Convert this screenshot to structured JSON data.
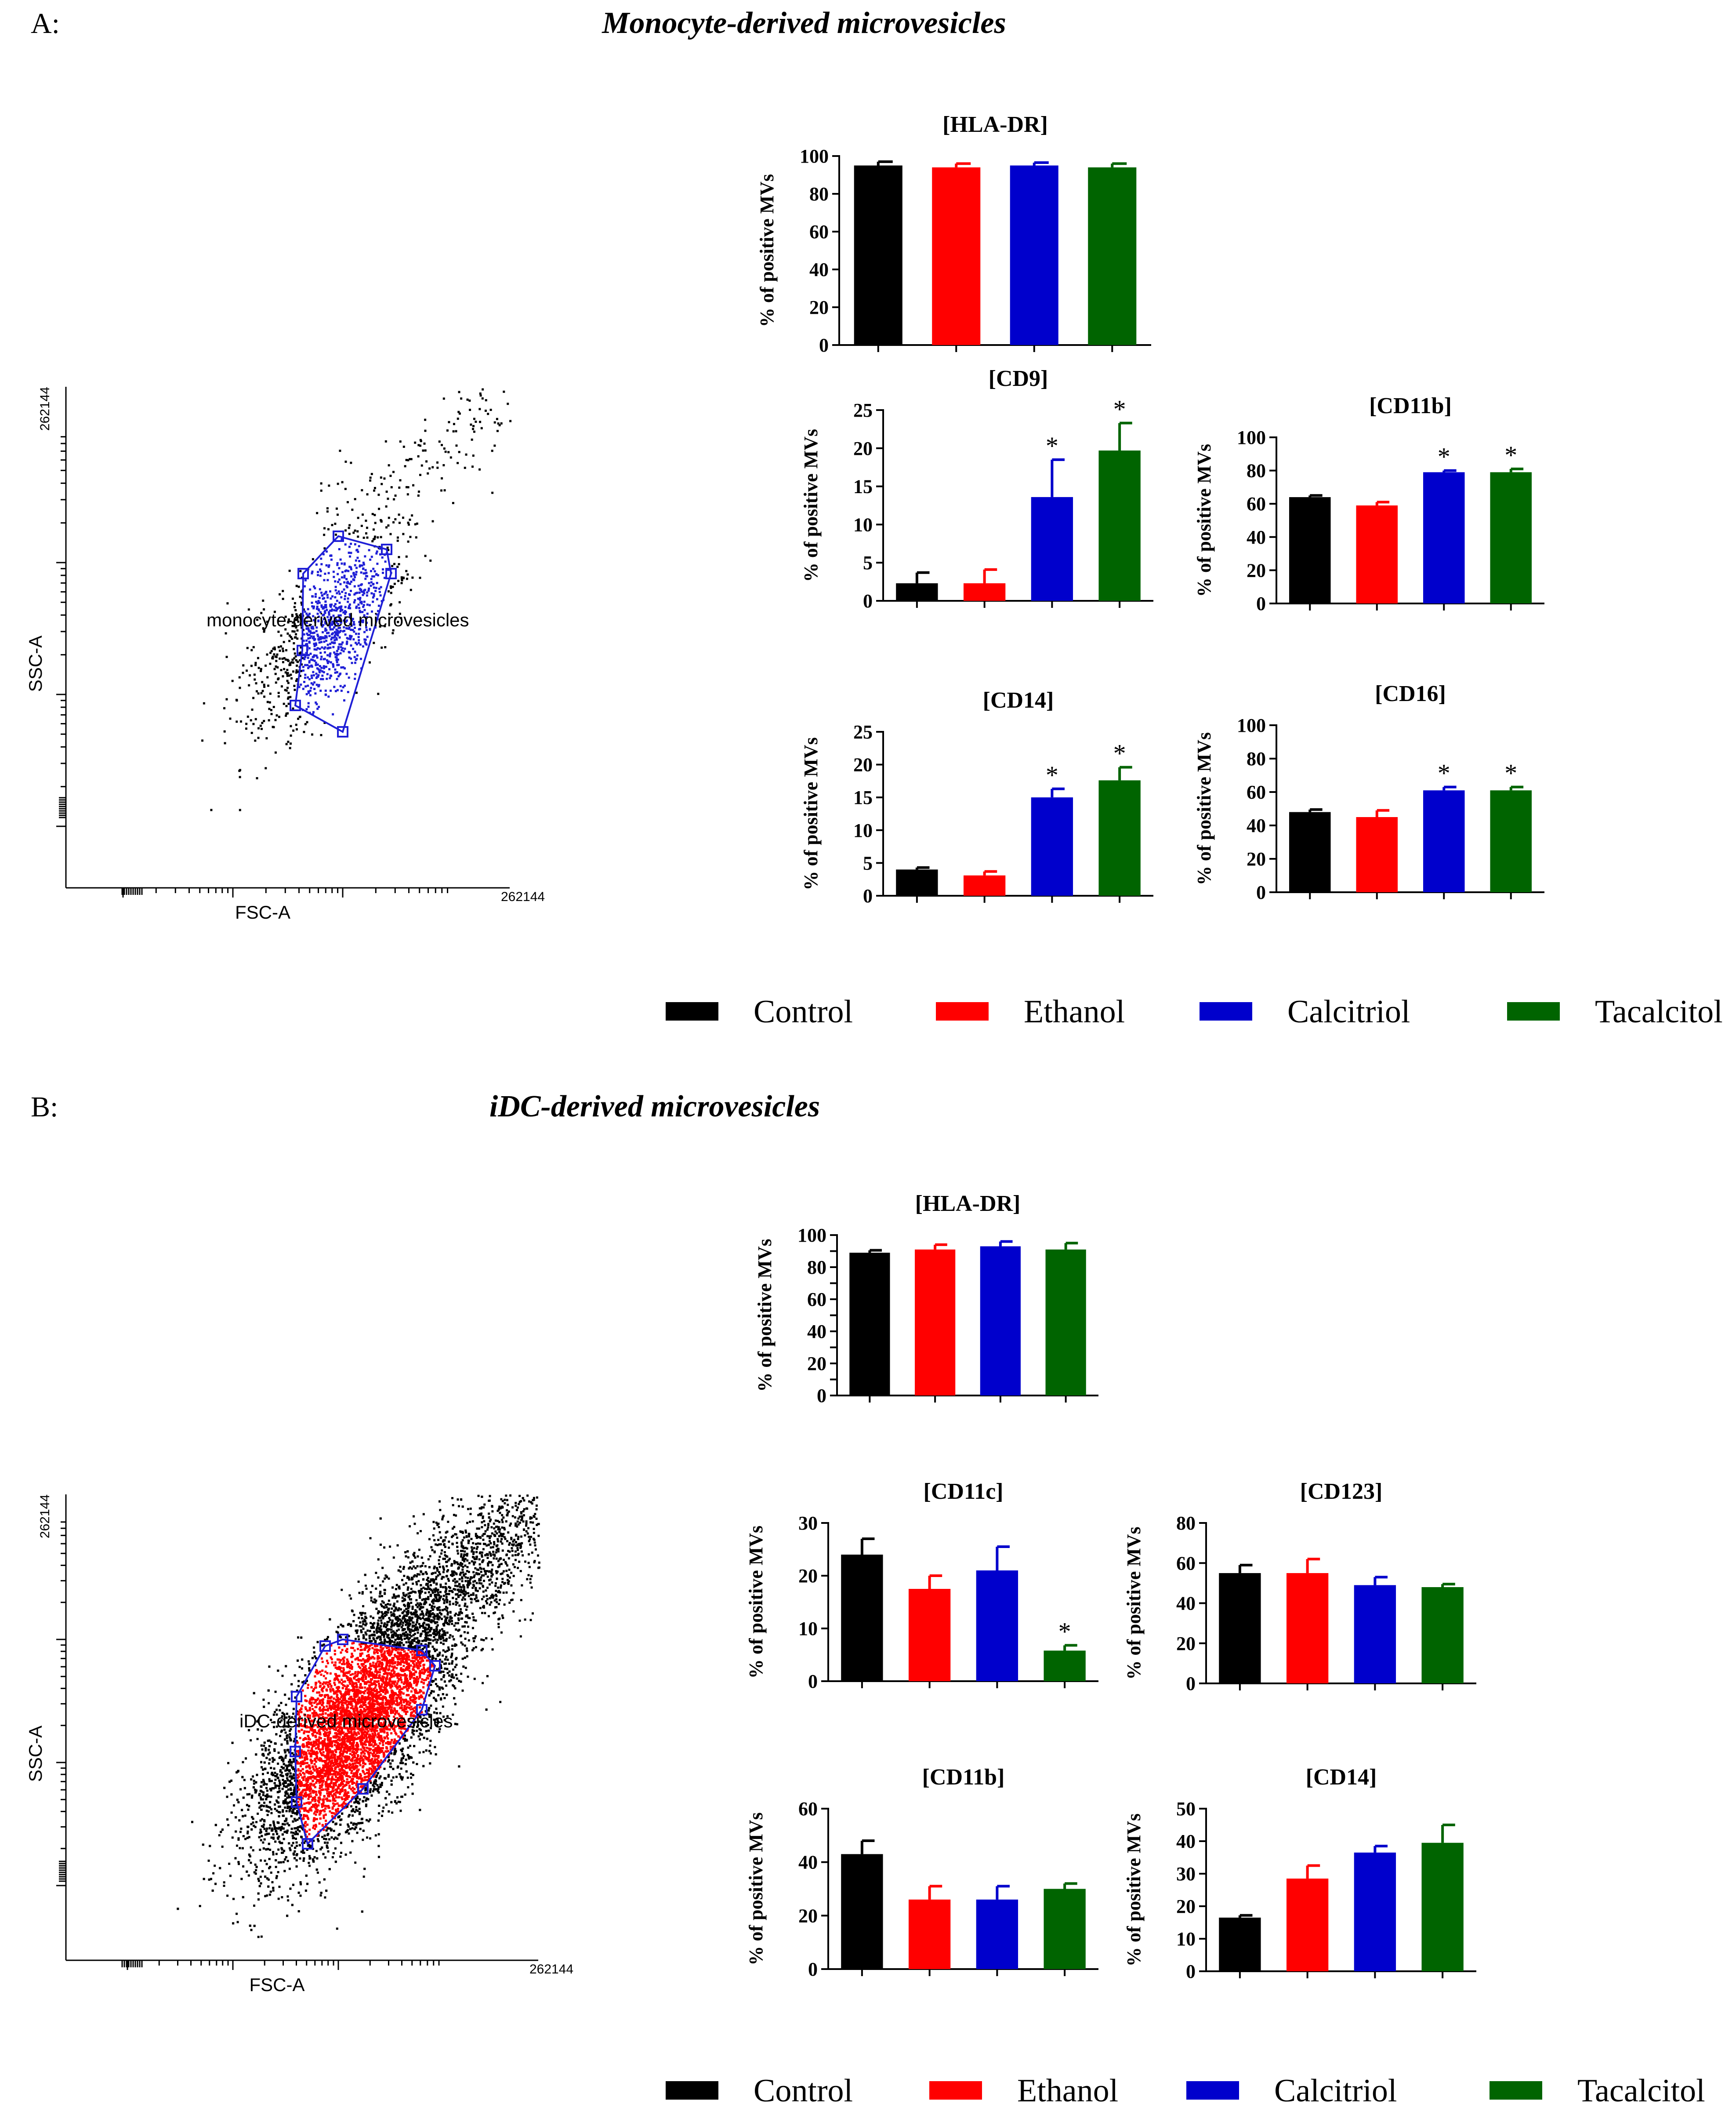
{
  "panels": [
    {
      "letter": "A:",
      "title": "Monocyte-derived microvesicles",
      "scatter": {
        "xlabel": "FSC-A",
        "ylabel": "SSC-A",
        "x_max_tick": "262144",
        "y_max_tick": "262144",
        "gate_label": "monocyte-derived microvesicles",
        "gate_color": "#1f1fd6",
        "gated_dot_color": "#1f1fd6",
        "other_dot_color": "#000000"
      },
      "legend": [
        {
          "label": "Control",
          "color": "#000000"
        },
        {
          "label": "Ethanol",
          "color": "#ff0000"
        },
        {
          "label": "Calcitriol",
          "color": "#0000cc"
        },
        {
          "label": "Tacalcitol",
          "color": "#006400"
        }
      ]
    },
    {
      "letter": "B:",
      "title": "iDC-derived microvesicles",
      "scatter": {
        "xlabel": "FSC-A",
        "ylabel": "SSC-A",
        "x_max_tick": "262144",
        "y_max_tick": "262144",
        "gate_label": "iDC-derived microvesicles",
        "gate_color": "#1f1fd6",
        "gated_dot_color": "#ff0000",
        "other_dot_color": "#000000"
      },
      "legend": [
        {
          "label": "Control",
          "color": "#000000"
        },
        {
          "label": "Ethanol",
          "color": "#ff0000"
        },
        {
          "label": "Calcitriol",
          "color": "#0000cc"
        },
        {
          "label": "Tacalcitol",
          "color": "#006400"
        }
      ]
    }
  ],
  "chart_data": [
    {
      "id": "A-HLA-DR",
      "type": "bar",
      "title": "[HLA-DR]",
      "ylabel": "% of positive MVs",
      "categories": [
        "Control",
        "Ethanol",
        "Calcitriol",
        "Tacalcitol"
      ],
      "colors": [
        "#000000",
        "#ff0000",
        "#0000cc",
        "#006400"
      ],
      "values": [
        95,
        94,
        95,
        94
      ],
      "errors": [
        2,
        2,
        1.5,
        2
      ],
      "ylim": [
        0,
        100
      ],
      "yticks": [
        0,
        20,
        40,
        60,
        80,
        100
      ],
      "significant": [
        false,
        false,
        false,
        false
      ]
    },
    {
      "id": "A-CD9",
      "type": "bar",
      "title": "[CD9]",
      "ylabel": "% of positive MVs",
      "categories": [
        "Control",
        "Ethanol",
        "Calcitriol",
        "Tacalcitol"
      ],
      "colors": [
        "#000000",
        "#ff0000",
        "#0000cc",
        "#006400"
      ],
      "values": [
        2.3,
        2.3,
        13.6,
        19.7
      ],
      "errors": [
        1.4,
        1.8,
        4.9,
        3.6
      ],
      "ylim": [
        0,
        25
      ],
      "yticks": [
        0,
        5,
        10,
        15,
        20,
        25
      ],
      "significant": [
        false,
        false,
        true,
        true
      ]
    },
    {
      "id": "A-CD11b",
      "type": "bar",
      "title": "[CD11b]",
      "ylabel": "% of positive MVs",
      "categories": [
        "Control",
        "Ethanol",
        "Calcitriol",
        "Tacalcitol"
      ],
      "colors": [
        "#000000",
        "#ff0000",
        "#0000cc",
        "#006400"
      ],
      "values": [
        64,
        59,
        79,
        79
      ],
      "errors": [
        1,
        2,
        1,
        2
      ],
      "ylim": [
        0,
        100
      ],
      "yticks": [
        0,
        20,
        40,
        60,
        80,
        100
      ],
      "significant": [
        false,
        false,
        true,
        true
      ]
    },
    {
      "id": "A-CD14",
      "type": "bar",
      "title": "[CD14]",
      "ylabel": "% of positive MVs",
      "categories": [
        "Control",
        "Ethanol",
        "Calcitriol",
        "Tacalcitol"
      ],
      "colors": [
        "#000000",
        "#ff0000",
        "#0000cc",
        "#006400"
      ],
      "values": [
        4.0,
        3.1,
        15.0,
        17.6
      ],
      "errors": [
        0.3,
        0.6,
        1.3,
        2.0
      ],
      "ylim": [
        0,
        25
      ],
      "yticks": [
        0,
        5,
        10,
        15,
        20,
        25
      ],
      "significant": [
        false,
        false,
        true,
        true
      ]
    },
    {
      "id": "A-CD16",
      "type": "bar",
      "title": "[CD16]",
      "ylabel": "% of positive MVs",
      "categories": [
        "Control",
        "Ethanol",
        "Calcitriol",
        "Tacalcitol"
      ],
      "colors": [
        "#000000",
        "#ff0000",
        "#0000cc",
        "#006400"
      ],
      "values": [
        48,
        45,
        61,
        61
      ],
      "errors": [
        1.5,
        4,
        2,
        2
      ],
      "ylim": [
        0,
        100
      ],
      "yticks": [
        0,
        20,
        40,
        60,
        80,
        100
      ],
      "significant": [
        false,
        false,
        true,
        true
      ]
    },
    {
      "id": "B-HLA-DR",
      "type": "bar",
      "title": "[HLA-DR]",
      "ylabel": "% of positive MVs",
      "categories": [
        "Control",
        "Ethanol",
        "Calcitriol",
        "Tacalcitol"
      ],
      "colors": [
        "#000000",
        "#ff0000",
        "#0000cc",
        "#006400"
      ],
      "values": [
        89,
        91,
        93,
        91
      ],
      "errors": [
        1.5,
        3,
        3,
        4
      ],
      "ylim": [
        0,
        100
      ],
      "yticks": [
        0,
        10,
        20,
        30,
        40,
        50,
        60,
        70,
        80,
        90,
        100
      ],
      "ytick_labels": [
        "0",
        "",
        "20",
        "",
        "40",
        "",
        "60",
        "",
        "80",
        "",
        "100"
      ],
      "significant": [
        false,
        false,
        false,
        false
      ]
    },
    {
      "id": "B-CD11c",
      "type": "bar",
      "title": "[CD11c]",
      "ylabel": "% of positive MVs",
      "categories": [
        "Control",
        "Ethanol",
        "Calcitriol",
        "Tacalcitol"
      ],
      "colors": [
        "#000000",
        "#ff0000",
        "#0000cc",
        "#006400"
      ],
      "values": [
        24,
        17.5,
        21,
        5.8
      ],
      "errors": [
        3,
        2.5,
        4.5,
        1
      ],
      "ylim": [
        0,
        30
      ],
      "yticks": [
        0,
        10,
        20,
        30
      ],
      "significant": [
        false,
        false,
        false,
        true
      ]
    },
    {
      "id": "B-CD123",
      "type": "bar",
      "title": "[CD123]",
      "ylabel": "% of positive MVs",
      "categories": [
        "Control",
        "Ethanol",
        "Calcitriol",
        "Tacalcitol"
      ],
      "colors": [
        "#000000",
        "#ff0000",
        "#0000cc",
        "#006400"
      ],
      "values": [
        55,
        55,
        49,
        48
      ],
      "errors": [
        4,
        7,
        4,
        1.5
      ],
      "ylim": [
        0,
        80
      ],
      "yticks": [
        0,
        20,
        40,
        60,
        80
      ],
      "significant": [
        false,
        false,
        false,
        false
      ]
    },
    {
      "id": "B-CD11b",
      "type": "bar",
      "title": "[CD11b]",
      "ylabel": "% of positive MVs",
      "categories": [
        "Control",
        "Ethanol",
        "Calcitriol",
        "Tacalcitol"
      ],
      "colors": [
        "#000000",
        "#ff0000",
        "#0000cc",
        "#006400"
      ],
      "values": [
        43,
        26,
        26,
        30
      ],
      "errors": [
        5,
        5,
        5,
        2
      ],
      "ylim": [
        0,
        60
      ],
      "yticks": [
        0,
        20,
        40,
        60
      ],
      "significant": [
        false,
        false,
        false,
        false
      ]
    },
    {
      "id": "B-CD14",
      "type": "bar",
      "title": "[CD14]",
      "ylabel": "% of positive MVs",
      "categories": [
        "Control",
        "Ethanol",
        "Calcitriol",
        "Tacalcitol"
      ],
      "colors": [
        "#000000",
        "#ff0000",
        "#0000cc",
        "#006400"
      ],
      "values": [
        16.5,
        28.5,
        36.5,
        39.5
      ],
      "errors": [
        0.7,
        4,
        2,
        5.5
      ],
      "ylim": [
        0,
        50
      ],
      "yticks": [
        0,
        10,
        20,
        30,
        40,
        50
      ],
      "significant": [
        false,
        false,
        false,
        false
      ]
    }
  ]
}
